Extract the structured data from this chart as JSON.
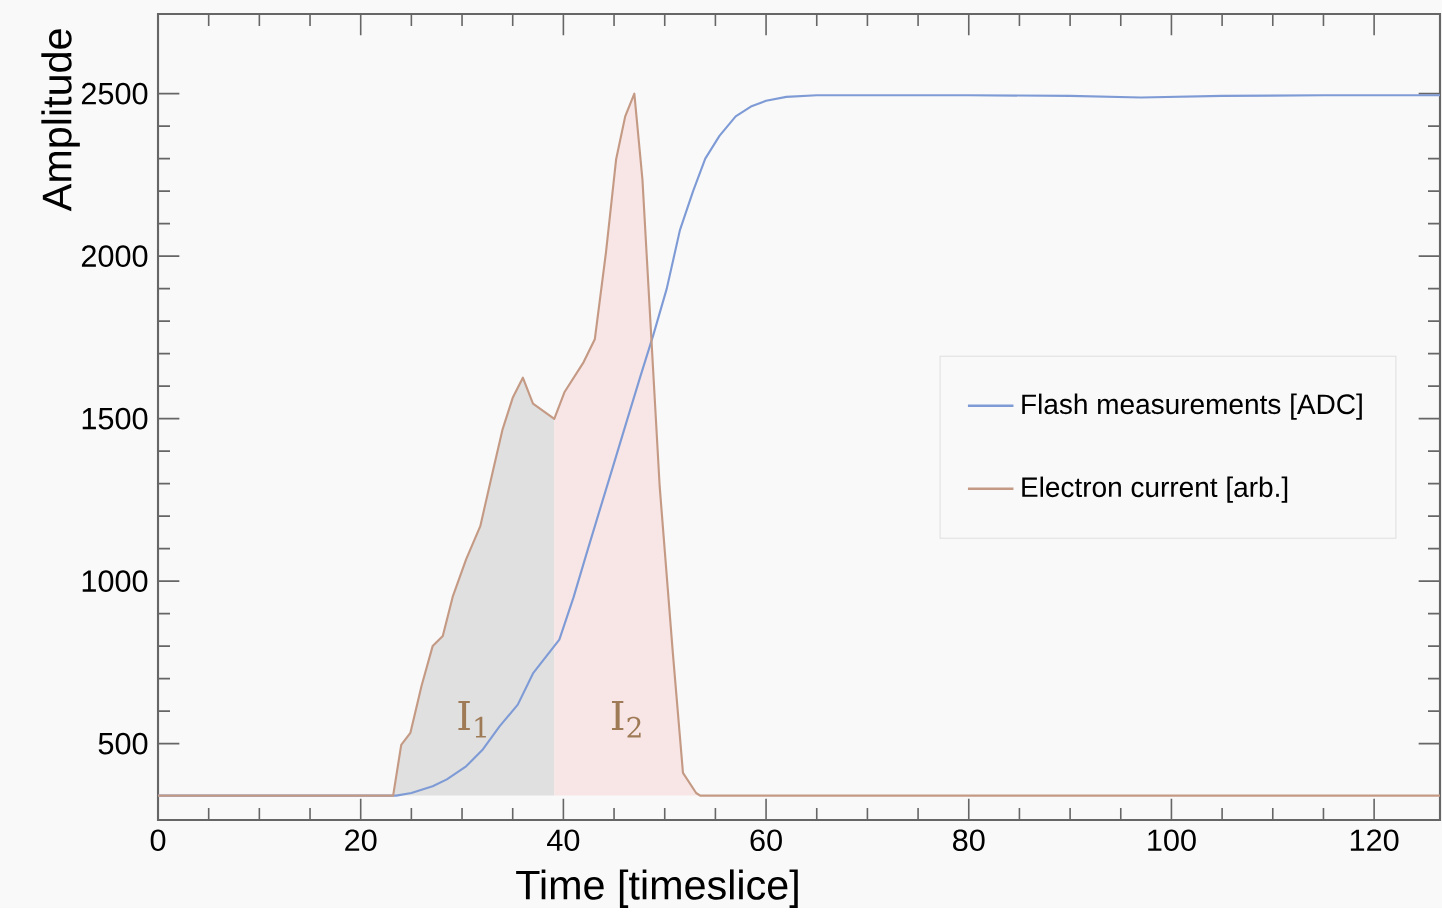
{
  "chart_data": {
    "type": "line",
    "xlabel": "Time [timeslice]",
    "ylabel": "Amplitude",
    "xlim": [
      0,
      126.5
    ],
    "ylim": [
      265,
      2745
    ],
    "xticks": [
      0,
      20,
      40,
      60,
      80,
      100,
      120
    ],
    "yticks": [
      500,
      1000,
      1500,
      2000,
      2500
    ],
    "legend": "right",
    "marker": "none",
    "series": [
      {
        "name": "Flash measurements [ADC]",
        "color": "#7f9bd6",
        "x": [
          0,
          23.5,
          25,
          27.1,
          28.5,
          30.4,
          32,
          33.7,
          35.5,
          37.0,
          39.6,
          41,
          42.3,
          43.6,
          44.9,
          46.2,
          47.5,
          48.9,
          50.2,
          51.5,
          52.8,
          54,
          55.4,
          57,
          58.5,
          60.0,
          62,
          65,
          70,
          80,
          90,
          97,
          105,
          115,
          126.5
        ],
        "values": [
          340,
          340,
          348,
          369,
          390,
          430,
          480,
          553,
          620,
          716,
          820,
          950,
          1086,
          1220,
          1353,
          1487,
          1620,
          1760,
          1900,
          2080,
          2200,
          2300,
          2370,
          2430,
          2460,
          2478,
          2490,
          2495,
          2495,
          2495,
          2493,
          2488,
          2493,
          2495,
          2495
        ]
      },
      {
        "name": "Electron current [arb.]",
        "color": "#c49a85",
        "x": [
          0,
          23.2,
          24.0,
          24.9,
          26.0,
          27.1,
          28.1,
          29.1,
          30.4,
          31.8,
          33.0,
          34.0,
          35.0,
          36.0,
          37.0,
          39.1,
          40.1,
          42.0,
          43.1,
          44.2,
          45.2,
          46.1,
          47.0,
          47.8,
          49.5,
          50.8,
          51.8,
          53.1,
          53.5,
          126.5
        ],
        "values": [
          340,
          340,
          496,
          533,
          677,
          800,
          831,
          954,
          1067,
          1169,
          1333,
          1467,
          1564,
          1626,
          1546,
          1499,
          1581,
          1674,
          1744,
          2011,
          2297,
          2430,
          2500,
          2236,
          1292,
          779,
          410,
          348,
          340,
          340
        ]
      },
      {
        "type": "area",
        "color": "#e0e0e0",
        "x": [
          23.2,
          24.0,
          24.9,
          26.0,
          27.1,
          28.1,
          29.1,
          30.4,
          31.8,
          33.0,
          34.0,
          35.0,
          36.0,
          37.0,
          39.1,
          39.1
        ],
        "values": [
          340,
          496,
          533,
          677,
          800,
          831,
          954,
          1067,
          1169,
          1333,
          1467,
          1564,
          1626,
          1546,
          1499,
          340
        ]
      },
      {
        "type": "area",
        "color": "#f8e6e6",
        "x": [
          39.1,
          39.1,
          40.1,
          42.0,
          43.1,
          44.2,
          45.2,
          46.1,
          47.0,
          47.8,
          49.5,
          50.8,
          51.8,
          53.1,
          53.5
        ],
        "values": [
          340,
          1499,
          1581,
          1674,
          1744,
          2011,
          2297,
          2430,
          2500,
          2236,
          1292,
          779,
          410,
          348,
          340
        ]
      }
    ],
    "annotations": [
      "I$_{1}$",
      "I$_{2}$"
    ]
  }
}
